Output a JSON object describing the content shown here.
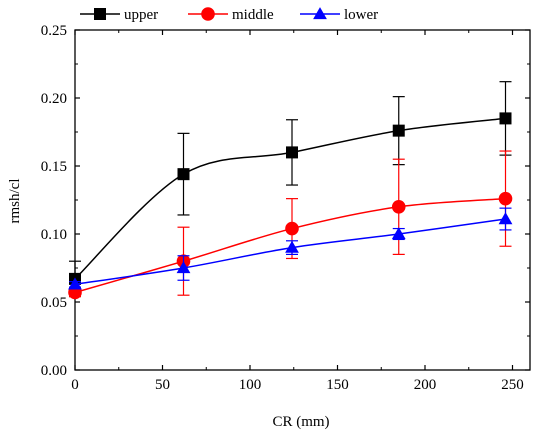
{
  "chart_data": {
    "type": "line",
    "xlabel": "CR (mm)",
    "ylabel": "rmsh/cl",
    "xlim": [
      0,
      260
    ],
    "ylim": [
      0,
      0.25
    ],
    "x_ticks": [
      "0",
      "50",
      "100",
      "150",
      "200",
      "250"
    ],
    "y_ticks": [
      "0.00",
      "0.05",
      "0.10",
      "0.15",
      "0.20",
      "0.25"
    ],
    "legend_position": "top",
    "grid": false,
    "series": [
      {
        "name": "upper",
        "color": "#000000",
        "marker": "square",
        "x": [
          0,
          62,
          124,
          185,
          246
        ],
        "y": [
          0.067,
          0.144,
          0.16,
          0.176,
          0.185
        ],
        "error": [
          0.013,
          0.03,
          0.024,
          0.025,
          0.027
        ]
      },
      {
        "name": "middle",
        "color": "#ff0000",
        "marker": "circle",
        "x": [
          0,
          62,
          124,
          185,
          246
        ],
        "y": [
          0.057,
          0.08,
          0.104,
          0.12,
          0.126
        ],
        "error": [
          0.003,
          0.025,
          0.022,
          0.035,
          0.035
        ]
      },
      {
        "name": "lower",
        "color": "#0000ff",
        "marker": "triangle",
        "x": [
          0,
          62,
          124,
          185,
          246
        ],
        "y": [
          0.063,
          0.075,
          0.09,
          0.1,
          0.111
        ],
        "error": [
          0.002,
          0.009,
          0.005,
          0.004,
          0.008
        ]
      }
    ]
  }
}
